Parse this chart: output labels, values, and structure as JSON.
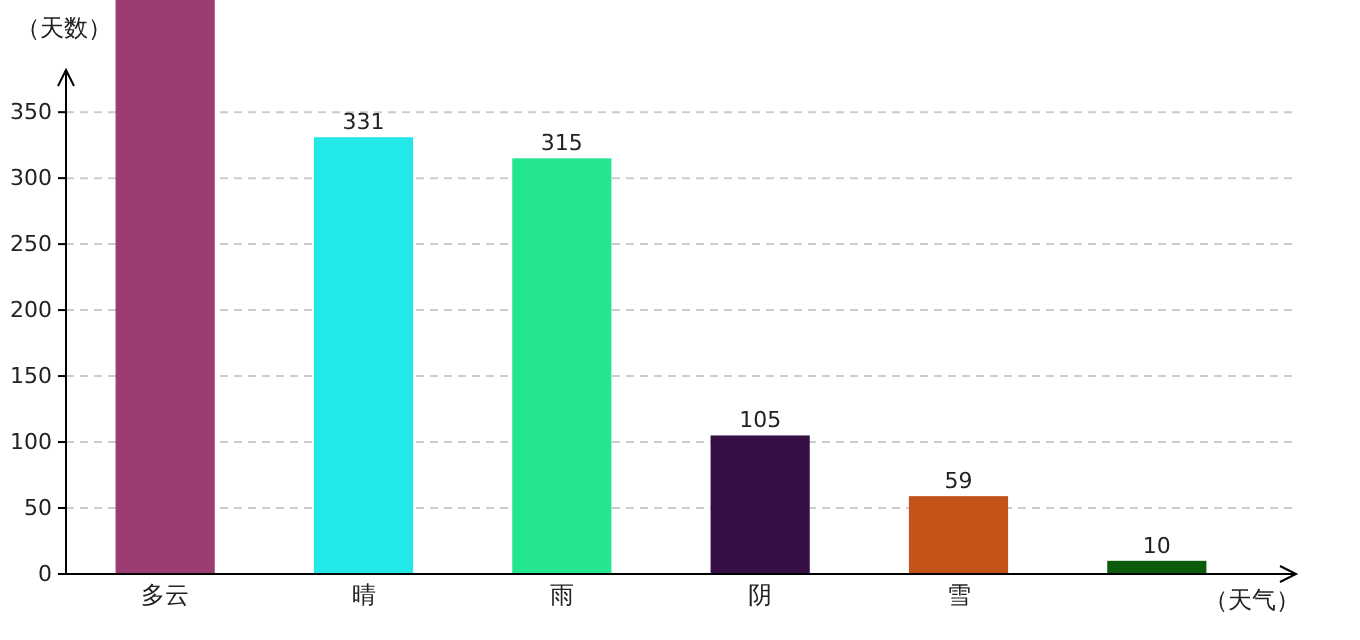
{
  "chart_data": {
    "type": "bar",
    "xlabel": "（天气）",
    "ylabel": "（天数）",
    "categories": [
      "多云",
      "晴",
      "雨",
      "阴",
      "雪",
      null
    ],
    "values": [
      435,
      331,
      315,
      105,
      59,
      10
    ],
    "colors": [
      "#9b3d73",
      "#22e8e8",
      "#24e690",
      "#360f47",
      "#c4531a",
      "#0c5c0c"
    ],
    "value_labels": [
      null,
      "331",
      "315",
      "105",
      "59",
      "10"
    ],
    "ylim": [
      0,
      435
    ],
    "yticks": [
      0,
      50,
      100,
      150,
      200,
      250,
      300,
      350
    ],
    "grid": "y"
  }
}
